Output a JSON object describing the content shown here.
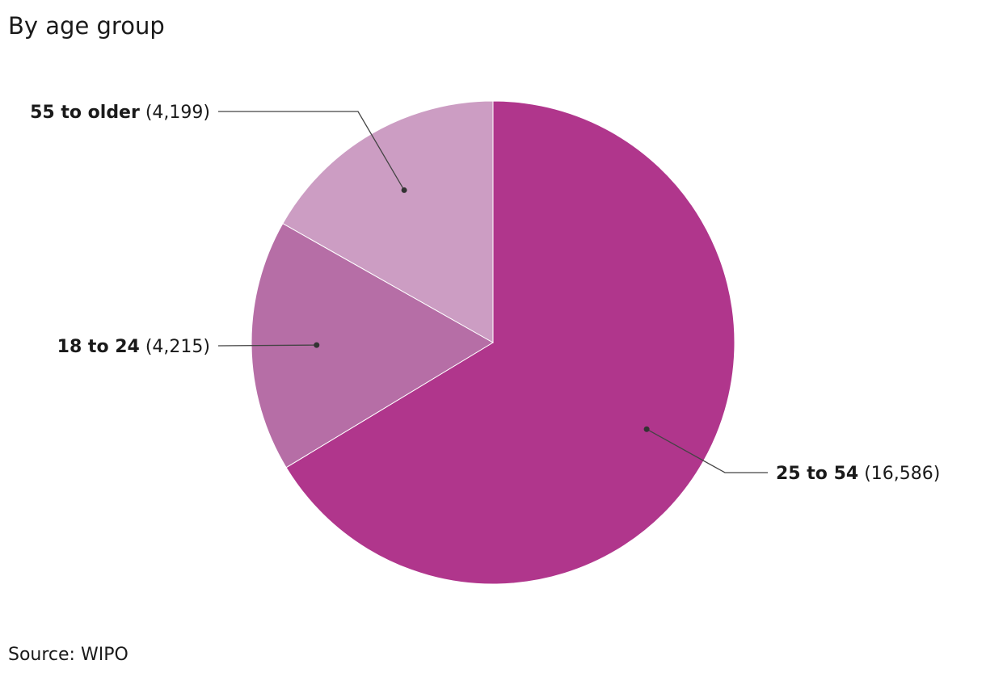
{
  "chart_data": {
    "type": "pie",
    "title": "By age group",
    "categories": [
      "25 to 54",
      "18 to 24",
      "55 to older"
    ],
    "values": [
      16586,
      4215,
      4199
    ],
    "value_labels": [
      "(16,586)",
      "(4,215)",
      "(4,199)"
    ],
    "colors": [
      "#b0368c",
      "#b66ea6",
      "#cc9dc3"
    ],
    "source": "Source: WIPO"
  }
}
